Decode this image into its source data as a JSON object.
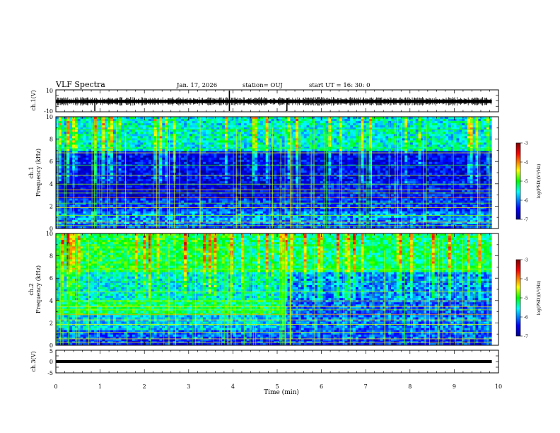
{
  "header": {
    "title": "VLF Spectra",
    "date": "Jan. 17, 2026",
    "station": "station= OUJ",
    "start_ut": "start UT =  16: 30: 0"
  },
  "chart_data": [
    {
      "name": "waveform-ch1",
      "type": "line",
      "ylabel": "ch.1(V)",
      "ylim": [
        -10,
        10
      ],
      "yticks": [
        "10",
        "-10"
      ],
      "baseline_amplitude_v": 1.5,
      "spikes_at_min": [
        0.88,
        3.92,
        5.22
      ]
    },
    {
      "name": "spectrogram-ch1",
      "type": "heatmap",
      "ylabel_top": "ch.1",
      "ylabel": "Frequency (kHz)",
      "ylim": [
        0,
        10
      ],
      "yticks": [
        "0",
        "2",
        "4",
        "6",
        "8",
        "10"
      ],
      "colorbar_label": "log(PSD)(V²/Hz)",
      "colorbar_ticks": [
        "-3",
        "-4",
        "-5",
        "-6",
        "-7"
      ],
      "crange": [
        -7,
        -3
      ]
    },
    {
      "name": "spectrogram-ch2",
      "type": "heatmap",
      "ylabel_top": "ch.2",
      "ylabel": "Frequency (kHz)",
      "ylim": [
        0,
        10
      ],
      "yticks": [
        "0",
        "2",
        "4",
        "6",
        "8",
        "10"
      ],
      "colorbar_label": "log(PSD)(V²/Hz)",
      "colorbar_ticks": [
        "-3",
        "-4",
        "-5",
        "-6",
        "-7"
      ],
      "crange": [
        -7,
        -3
      ]
    },
    {
      "name": "waveform-ch3",
      "type": "line",
      "ylabel": "ch.3(V)",
      "ylim": [
        -5,
        5
      ],
      "yticks": [
        "5",
        "0",
        "-5"
      ],
      "constant_value_v": 0
    }
  ],
  "xaxis": {
    "xlabel": "Time (min)",
    "xlim": [
      0,
      10
    ],
    "xticks": [
      "0",
      "1",
      "2",
      "3",
      "4",
      "5",
      "6",
      "7",
      "8",
      "9",
      "10"
    ],
    "data_end_min": 9.85
  },
  "colors": {
    "ink": "#000000",
    "colormap": [
      "#00008f",
      "#0000ff",
      "#00ffff",
      "#00ff00",
      "#ffff00",
      "#ff0000",
      "#800000"
    ]
  }
}
